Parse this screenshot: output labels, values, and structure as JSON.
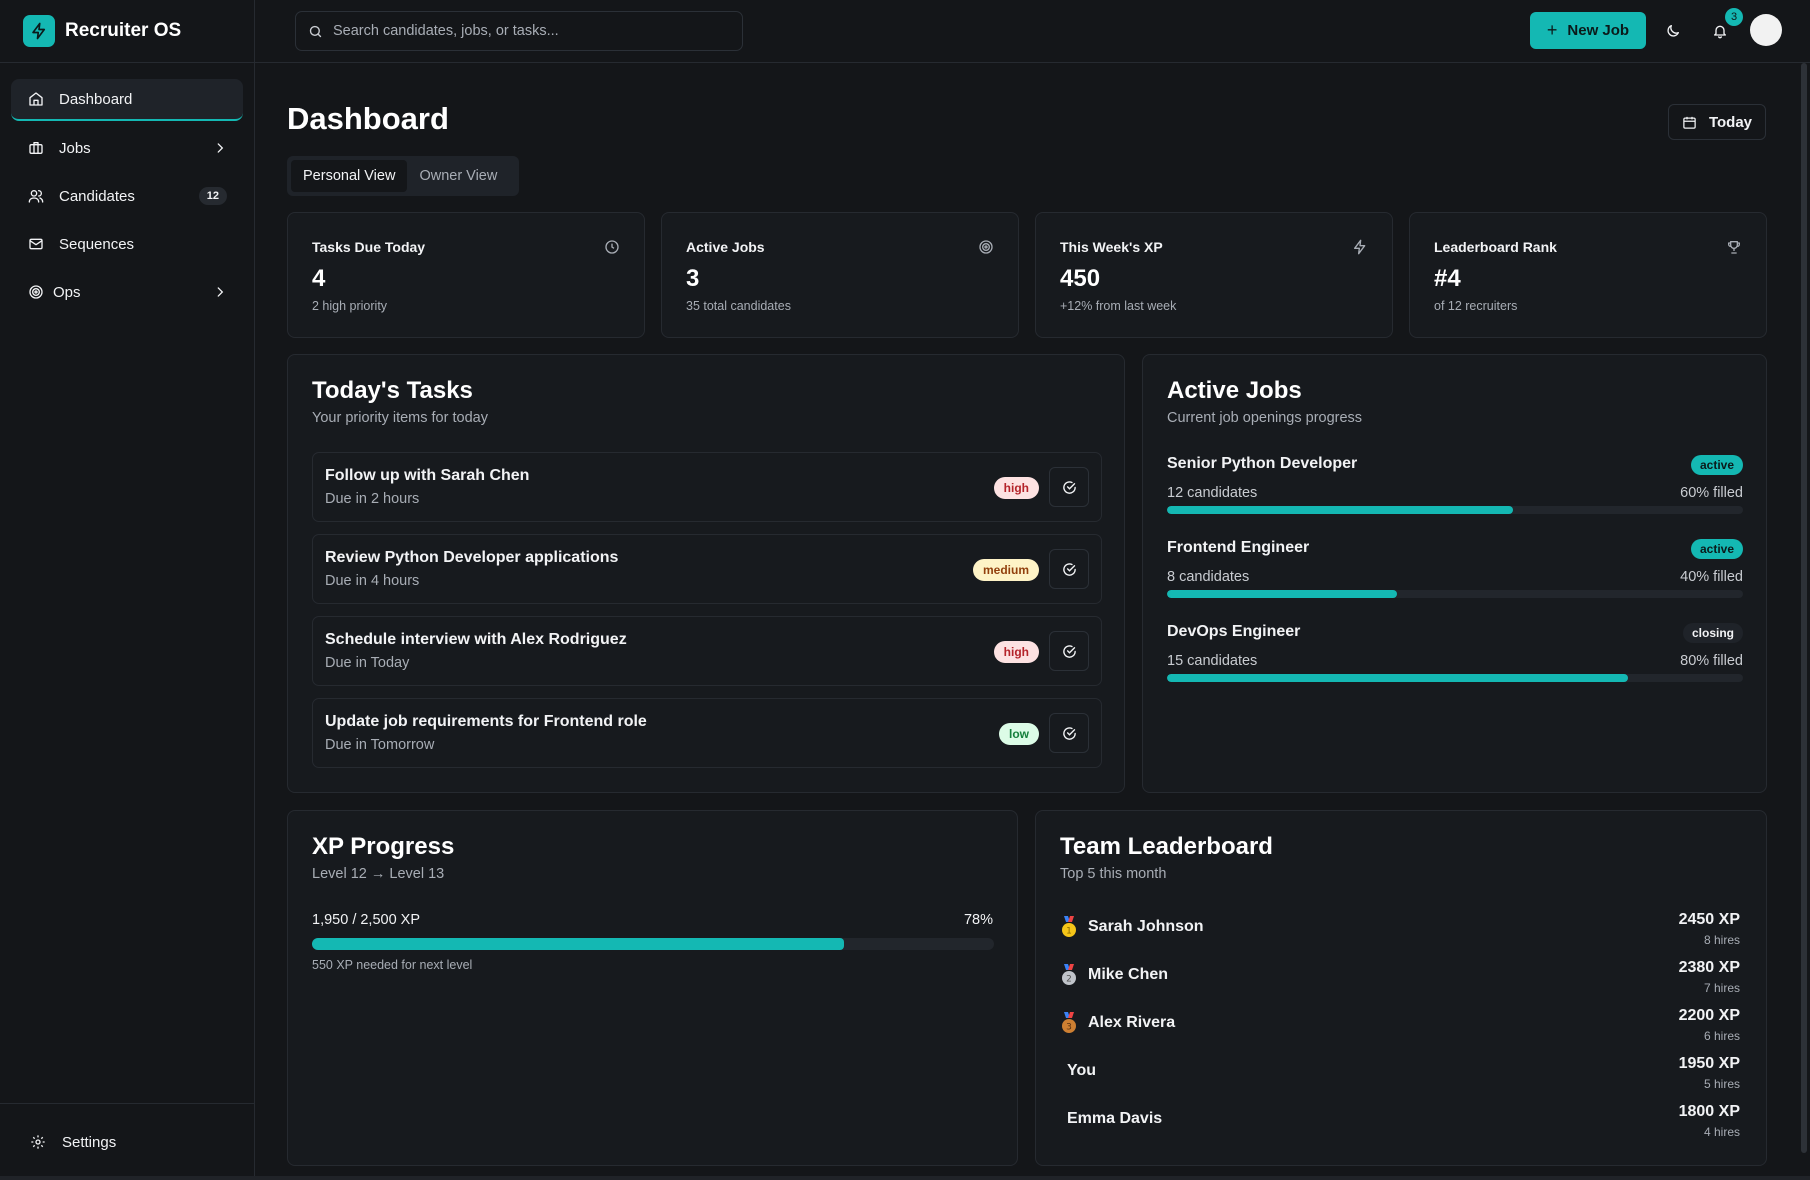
{
  "app": {
    "name": "Recruiter OS"
  },
  "sidebar": {
    "items": [
      {
        "label": "Dashboard",
        "icon": "home-icon",
        "active": true
      },
      {
        "label": "Jobs",
        "icon": "briefcase-icon",
        "chevron": true
      },
      {
        "label": "Candidates",
        "icon": "users-icon",
        "badge": "12"
      },
      {
        "label": "Sequences",
        "icon": "mail-icon"
      },
      {
        "label": "Ops",
        "icon": "target-icon",
        "chevron": true
      }
    ],
    "footer": {
      "label": "Settings",
      "icon": "gear-icon"
    }
  },
  "topbar": {
    "search_placeholder": "Search candidates, jobs, or tasks...",
    "new_job_label": "New Job",
    "notification_count": "3"
  },
  "page": {
    "title": "Dashboard",
    "date_button": "Today",
    "tabs": [
      {
        "label": "Personal View",
        "active": true
      },
      {
        "label": "Owner View",
        "active": false
      }
    ]
  },
  "stats": [
    {
      "title": "Tasks Due Today",
      "value": "4",
      "sub": "2 high priority",
      "icon": "clock-icon"
    },
    {
      "title": "Active Jobs",
      "value": "3",
      "sub": "35 total candidates",
      "icon": "target-icon"
    },
    {
      "title": "This Week's XP",
      "value": "450",
      "sub": "+12% from last week",
      "icon": "lightning-icon"
    },
    {
      "title": "Leaderboard Rank",
      "value": "#4",
      "sub": "of 12 recruiters",
      "icon": "trophy-icon"
    }
  ],
  "tasks": {
    "title": "Today's Tasks",
    "subtitle": "Your priority items for today",
    "items": [
      {
        "title": "Follow up with Sarah Chen",
        "due": "Due in 2 hours",
        "priority": "high"
      },
      {
        "title": "Review Python Developer applications",
        "due": "Due in 4 hours",
        "priority": "medium"
      },
      {
        "title": "Schedule interview with Alex Rodriguez",
        "due": "Due in Today",
        "priority": "high"
      },
      {
        "title": "Update job requirements for Frontend role",
        "due": "Due in Tomorrow",
        "priority": "low"
      }
    ]
  },
  "jobs": {
    "title": "Active Jobs",
    "subtitle": "Current job openings progress",
    "items": [
      {
        "name": "Senior Python Developer",
        "status": "active",
        "candidates": "12 candidates",
        "filled_label": "60% filled",
        "filled": 60
      },
      {
        "name": "Frontend Engineer",
        "status": "active",
        "candidates": "8 candidates",
        "filled_label": "40% filled",
        "filled": 40
      },
      {
        "name": "DevOps Engineer",
        "status": "closing",
        "candidates": "15 candidates",
        "filled_label": "80% filled",
        "filled": 80
      }
    ]
  },
  "xp": {
    "title": "XP Progress",
    "subtitle": "Level 12 → Level 13",
    "progress_text": "1,950 / 2,500 XP",
    "percent_label": "78%",
    "percent": 78,
    "note": "550 XP needed for next level"
  },
  "leaderboard": {
    "title": "Team Leaderboard",
    "subtitle": "Top 5 this month",
    "rows": [
      {
        "name": "Sarah Johnson",
        "xp": "2450 XP",
        "hires": "8 hires",
        "medal": "gold-medal-icon"
      },
      {
        "name": "Mike Chen",
        "xp": "2380 XP",
        "hires": "7 hires",
        "medal": "silver-medal-icon"
      },
      {
        "name": "Alex Rivera",
        "xp": "2200 XP",
        "hires": "6 hires",
        "medal": "bronze-medal-icon"
      },
      {
        "name": "You",
        "xp": "1950 XP",
        "hires": "5 hires",
        "medal": null
      },
      {
        "name": "Emma Davis",
        "xp": "1800 XP",
        "hires": "4 hires",
        "medal": null
      }
    ]
  },
  "colors": {
    "accent": "#14b8b3",
    "background": "#141619",
    "card": "#171a1e",
    "border": "#262a30"
  }
}
